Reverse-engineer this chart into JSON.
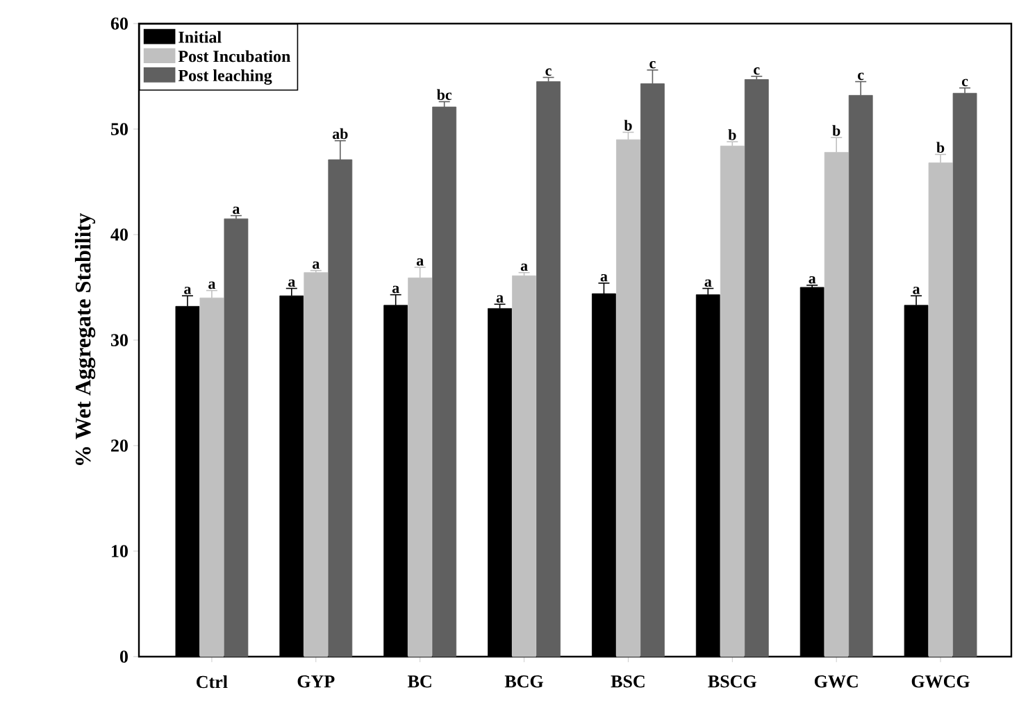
{
  "chart_data": {
    "type": "bar",
    "ylabel": "% Wet Aggregate Stability",
    "categories": [
      "Ctrl",
      "GYP",
      "BC",
      "BCG",
      "BSC",
      "BSCG",
      "GWC",
      "GWCG"
    ],
    "series": [
      {
        "name": "Initial",
        "color": "#000000",
        "values": [
          33.2,
          34.2,
          33.3,
          33.0,
          34.4,
          34.3,
          35.0,
          33.3
        ],
        "errors": [
          1.0,
          0.7,
          1.0,
          0.4,
          1.0,
          0.6,
          0.2,
          0.9
        ]
      },
      {
        "name": "Post Incubation",
        "color": "#c0c0c0",
        "values": [
          34.0,
          36.4,
          35.9,
          36.1,
          49.0,
          48.4,
          47.8,
          46.8
        ],
        "errors": [
          0.7,
          0.2,
          1.0,
          0.3,
          0.7,
          0.4,
          1.4,
          0.8
        ]
      },
      {
        "name": "Post leaching",
        "color": "#606060",
        "values": [
          41.5,
          47.1,
          52.1,
          54.5,
          54.3,
          54.7,
          53.2,
          53.4
        ],
        "errors": [
          0.3,
          1.8,
          0.5,
          0.4,
          1.3,
          0.3,
          1.3,
          0.5
        ]
      }
    ],
    "ylim": [
      0,
      60
    ],
    "yticks": [
      0,
      10,
      20,
      30,
      40,
      50,
      60
    ],
    "legend": "top left",
    "annotations": [
      "a",
      "a",
      "a",
      "a",
      "a",
      "ab",
      "a",
      "a",
      "bc",
      "a",
      "a",
      "c",
      "a",
      "b",
      "c",
      "a",
      "b",
      "c",
      "a",
      "b",
      "c",
      "a",
      "b",
      "c"
    ]
  }
}
